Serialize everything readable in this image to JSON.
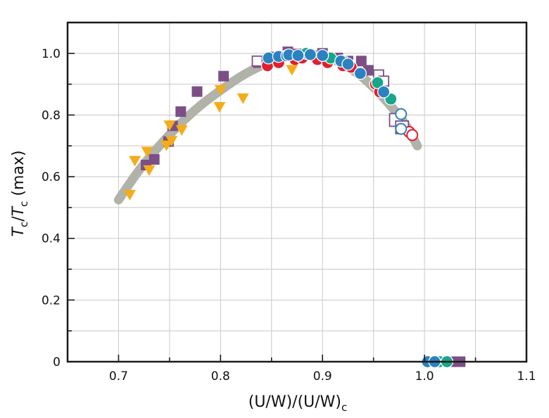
{
  "chart_data": {
    "type": "scatter",
    "title": "",
    "xlabel": {
      "main": "(U/W)/(U/W)",
      "sub": "c"
    },
    "ylabel": {
      "t1": "T",
      "s1": "c",
      "sep": "/",
      "t2": "T",
      "s2": "c",
      "tail": " (max)"
    },
    "xlim": [
      0.65,
      1.1
    ],
    "ylim": [
      0,
      1.1
    ],
    "x_ticks": [
      0.7,
      0.8,
      0.9,
      1.0,
      1.1
    ],
    "x_tick_labels": [
      "0.7",
      "0.8",
      "0.9",
      "1.0",
      "1.1"
    ],
    "y_ticks": [
      0,
      0.2,
      0.4,
      0.6,
      0.8,
      1.0
    ],
    "y_tick_labels": [
      "0",
      "0.2",
      "0.4",
      "0.6",
      "0.8",
      "1.0"
    ],
    "grid": true,
    "colors": {
      "purple": "#7b4f86",
      "red": "#e0202f",
      "green": "#17a68a",
      "blue": "#2b82c0",
      "orange": "#f5ac19",
      "curve": "#b1b2a8"
    },
    "curve": {
      "x": [
        0.7,
        0.72,
        0.74,
        0.76,
        0.78,
        0.8,
        0.82,
        0.84,
        0.86,
        0.88,
        0.9,
        0.92,
        0.94,
        0.96,
        0.98,
        0.993
      ],
      "y": [
        0.525,
        0.62,
        0.7,
        0.77,
        0.83,
        0.88,
        0.925,
        0.96,
        0.985,
        0.997,
        0.992,
        0.965,
        0.92,
        0.855,
        0.775,
        0.7
      ]
    },
    "series": [
      {
        "marker": "square",
        "color": "purple",
        "fill": true,
        "x": [
          0.727,
          0.735,
          0.749,
          0.753,
          0.761,
          0.777,
          0.803,
          0.837,
          0.85,
          0.866,
          0.875,
          0.9,
          0.915,
          0.925,
          0.938,
          0.945,
          1.025,
          1.035
        ],
        "y": [
          0.638,
          0.656,
          0.714,
          0.765,
          0.811,
          0.876,
          0.926,
          0.97,
          0.988,
          1.005,
          0.998,
          1.0,
          0.985,
          0.975,
          0.975,
          0.945,
          0,
          0
        ]
      },
      {
        "marker": "square",
        "color": "purple",
        "fill": false,
        "x": [
          0.836,
          0.955,
          0.96,
          0.972,
          0.978
        ],
        "y": [
          0.975,
          0.93,
          0.91,
          0.784,
          0.76
        ],
        "size": [
          14,
          14,
          14,
          18,
          18
        ]
      },
      {
        "marker": "circle",
        "color": "red",
        "fill": true,
        "x": [
          0.846,
          0.857,
          0.873,
          0.88,
          0.895,
          0.905,
          0.92,
          0.928,
          0.952,
          0.956
        ],
        "y": [
          0.96,
          0.97,
          0.98,
          0.985,
          0.98,
          0.97,
          0.96,
          0.955,
          0.9,
          0.875
        ]
      },
      {
        "marker": "circle",
        "color": "red",
        "fill": false,
        "x": [
          0.985,
          0.988
        ],
        "y": [
          0.745,
          0.735
        ]
      },
      {
        "marker": "circle",
        "color": "green",
        "fill": true,
        "x": [
          0.884,
          0.908,
          0.92,
          0.954,
          0.967,
          1.015,
          1.022
        ],
        "y": [
          1.0,
          0.985,
          0.975,
          0.905,
          0.852,
          0,
          0
        ]
      },
      {
        "marker": "circle",
        "color": "blue",
        "fill": true,
        "x": [
          0.847,
          0.857,
          0.865,
          0.867,
          0.876,
          0.888,
          0.9,
          0.918,
          0.925,
          0.937,
          0.96,
          1.003,
          1.01
        ],
        "y": [
          0.985,
          0.99,
          0.992,
          0.995,
          0.993,
          0.996,
          0.993,
          0.975,
          0.965,
          0.935,
          0.875,
          0,
          0
        ]
      },
      {
        "marker": "circle",
        "color": "blue",
        "fill": false,
        "x": [
          0.977,
          0.977
        ],
        "y": [
          0.803,
          0.755
        ]
      },
      {
        "marker": "triangle-down",
        "color": "orange",
        "fill": true,
        "x": [
          0.711,
          0.716,
          0.728,
          0.73,
          0.747,
          0.75,
          0.752,
          0.762,
          0.799,
          0.8,
          0.822,
          0.87
        ],
        "y": [
          0.54,
          0.65,
          0.68,
          0.62,
          0.7,
          0.765,
          0.715,
          0.75,
          0.825,
          0.88,
          0.853,
          0.945
        ]
      }
    ]
  }
}
